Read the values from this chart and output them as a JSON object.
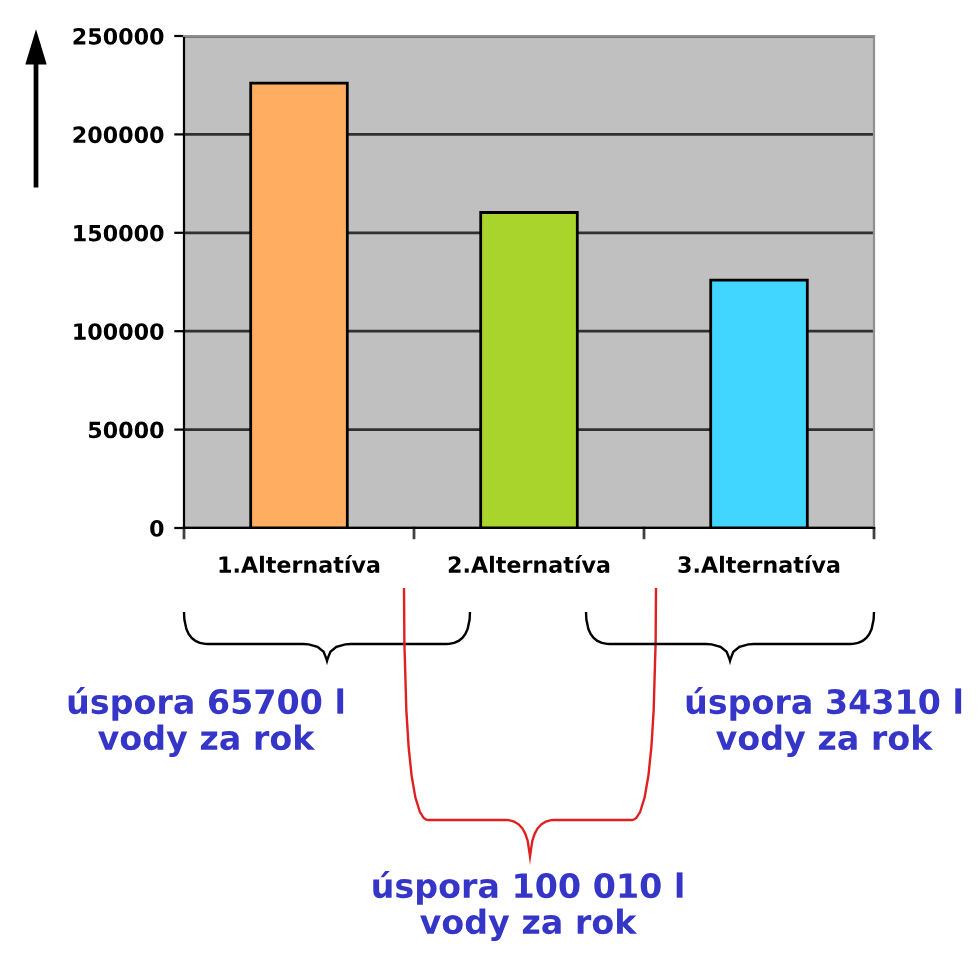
{
  "chart_data": {
    "type": "bar",
    "categories": [
      "1.Alternatíva",
      "2.Alternatíva",
      "3.Alternatíva"
    ],
    "values": [
      226010,
      160310,
      126000
    ],
    "colors": [
      "#ffad60",
      "#a9d42c",
      "#40d6ff"
    ],
    "ylim": [
      0,
      250000
    ],
    "yticks": [
      0,
      50000,
      100000,
      150000,
      200000,
      250000
    ],
    "grid": "y",
    "annotations": [
      "úspora 65700 l\nvody za rok",
      "úspora 100 010 l\nvody za rok",
      "úspora 34310 l\nvody za rok"
    ]
  }
}
